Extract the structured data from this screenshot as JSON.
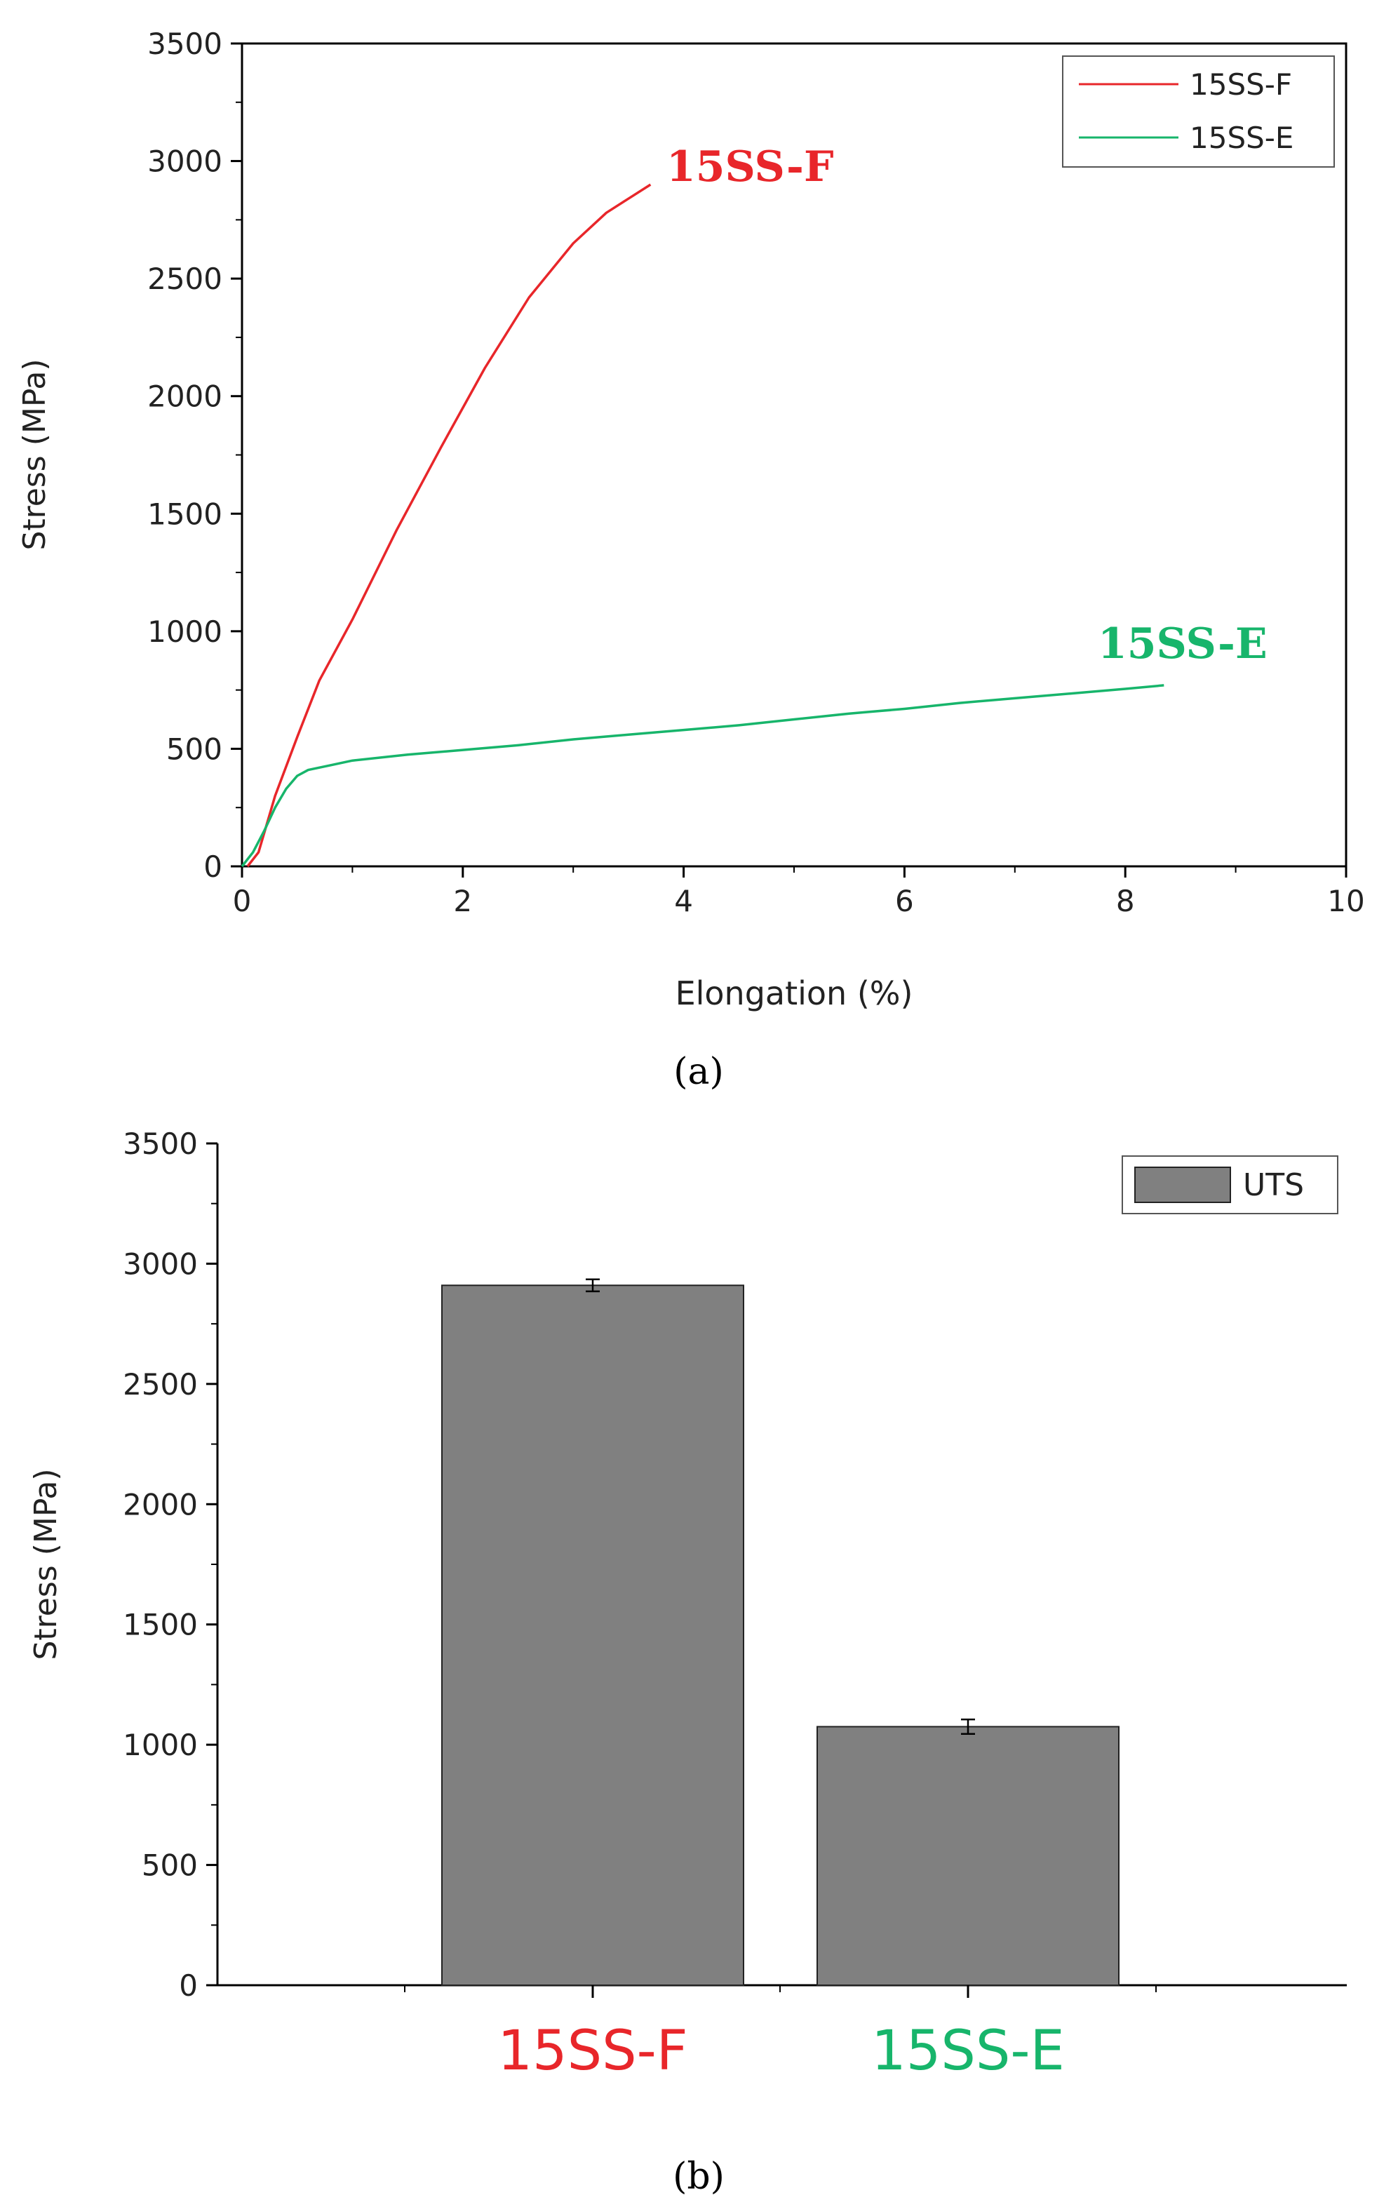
{
  "chart_data": [
    {
      "type": "line",
      "panel_label": "(a)",
      "xlabel": "Elongation (%)",
      "ylabel": "Stress (MPa)",
      "xlim": [
        0,
        10
      ],
      "ylim": [
        0,
        3500
      ],
      "xticks": [
        0,
        2,
        4,
        6,
        8,
        10
      ],
      "yticks": [
        0,
        500,
        1000,
        1500,
        2000,
        2500,
        3000,
        3500
      ],
      "legend_position": "top-right",
      "series": [
        {
          "name": "15SS-F",
          "color": "#e8262a",
          "annotation": "15SS-F",
          "x": [
            0.05,
            0.15,
            0.3,
            0.5,
            0.7,
            1.0,
            1.4,
            1.8,
            2.2,
            2.6,
            3.0,
            3.3,
            3.5,
            3.7
          ],
          "y": [
            0,
            60,
            300,
            550,
            790,
            1050,
            1430,
            1780,
            2120,
            2420,
            2650,
            2780,
            2840,
            2900
          ]
        },
        {
          "name": "15SS-E",
          "color": "#17b56b",
          "annotation": "15SS-E",
          "x": [
            0.0,
            0.1,
            0.2,
            0.3,
            0.4,
            0.5,
            0.6,
            0.8,
            1.0,
            1.5,
            2.0,
            2.5,
            3.0,
            3.5,
            4.0,
            4.5,
            5.0,
            5.5,
            6.0,
            6.5,
            7.0,
            7.5,
            8.0,
            8.35
          ],
          "y": [
            0,
            60,
            150,
            250,
            330,
            385,
            410,
            430,
            450,
            475,
            495,
            515,
            540,
            560,
            580,
            600,
            625,
            650,
            670,
            695,
            715,
            735,
            755,
            770
          ]
        }
      ]
    },
    {
      "type": "bar",
      "panel_label": "(b)",
      "ylabel": "Stress (MPa)",
      "ylim": [
        0,
        3500
      ],
      "yticks": [
        0,
        500,
        1000,
        1500,
        2000,
        2500,
        3000,
        3500
      ],
      "legend_position": "top-right",
      "categories": [
        "15SS-F",
        "15SS-E"
      ],
      "category_colors": [
        "#e8262a",
        "#17b56b"
      ],
      "series": [
        {
          "name": "UTS",
          "color": "#808080",
          "values": [
            2910,
            1075
          ],
          "errors": [
            25,
            30
          ]
        }
      ]
    }
  ]
}
